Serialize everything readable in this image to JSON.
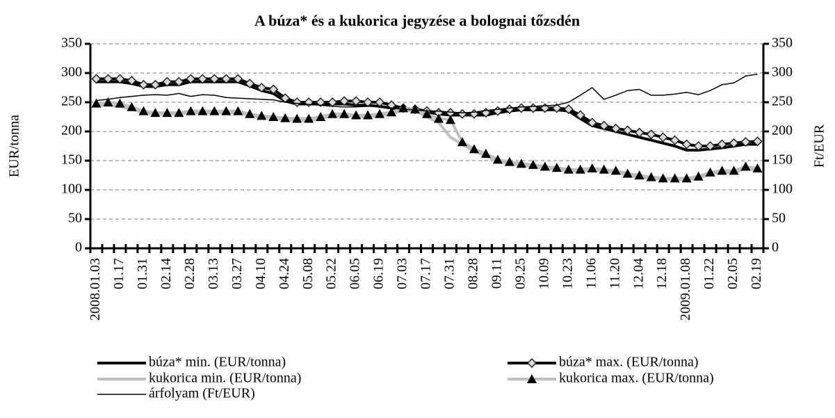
{
  "chart_data": {
    "type": "line",
    "title": "A búza* és a kukorica jegyzése a bolognai tőzsdén",
    "y_label": "EUR/tonna",
    "y2_label": "Ft/EUR",
    "categories": [
      "2008.01.03",
      null,
      "01.17",
      null,
      "01.31",
      null,
      "02.14",
      null,
      "02.28",
      null,
      "03.13",
      null,
      "03.27",
      null,
      "04.10",
      null,
      "04.24",
      null,
      "05.08",
      null,
      "05.22",
      null,
      "06.05",
      null,
      "06.19",
      null,
      "07.03",
      null,
      "07.17",
      null,
      "07.31",
      null,
      "08.28",
      null,
      "09.11",
      null,
      "09.25",
      null,
      "10.09",
      null,
      "10.23",
      null,
      "11.06",
      null,
      "11.20",
      null,
      "12.04",
      null,
      "12.18",
      null,
      "2009.01.08",
      null,
      "01.22",
      null,
      "02.05",
      null,
      "02.19"
    ],
    "ylim": [
      0,
      350
    ],
    "yticks": [
      0,
      50,
      100,
      150,
      200,
      250,
      300,
      350
    ],
    "y2lim": [
      0,
      350
    ],
    "y2ticks": [
      0,
      50,
      100,
      150,
      200,
      250,
      300,
      350
    ],
    "grid": true,
    "series": [
      {
        "name": "búza* min. (EUR/tonna)",
        "color": "#000000",
        "values": [
          285,
          285,
          285,
          282,
          277,
          277,
          280,
          280,
          285,
          285,
          285,
          285,
          285,
          278,
          270,
          265,
          252,
          247,
          247,
          247,
          247,
          247,
          245,
          245,
          243,
          240,
          237,
          235,
          233,
          230,
          228,
          228,
          228,
          228,
          232,
          235,
          237,
          237,
          237,
          237,
          235,
          222,
          210,
          205,
          200,
          195,
          190,
          185,
          180,
          175,
          168,
          168,
          170,
          172,
          175,
          178,
          178
        ]
      },
      {
        "name": "búza* max. (EUR/tonna)",
        "color": "#000000",
        "marker": "diamond",
        "values": [
          290,
          290,
          290,
          287,
          280,
          280,
          285,
          285,
          290,
          290,
          290,
          290,
          290,
          282,
          275,
          272,
          257,
          250,
          250,
          250,
          250,
          252,
          252,
          250,
          250,
          245,
          240,
          238,
          235,
          232,
          232,
          230,
          230,
          232,
          235,
          238,
          240,
          240,
          240,
          240,
          238,
          228,
          215,
          210,
          205,
          202,
          198,
          195,
          190,
          185,
          178,
          175,
          175,
          178,
          180,
          182,
          183
        ]
      },
      {
        "name": "kukorica min. (EUR/tonna)",
        "color": "#bfbfbf",
        "values": [
          245,
          245,
          243,
          238,
          232,
          230,
          230,
          230,
          232,
          232,
          232,
          232,
          232,
          227,
          224,
          222,
          220,
          219,
          219,
          222,
          227,
          227,
          225,
          225,
          227,
          230,
          237,
          235,
          225,
          215,
          190,
          178,
          166,
          158,
          148,
          145,
          142,
          140,
          137,
          135,
          132,
          132,
          134,
          132,
          130,
          125,
          122,
          120,
          118,
          118,
          118,
          120,
          127,
          130,
          130,
          136,
          134
        ]
      },
      {
        "name": "kukorica max. (EUR/tonna)",
        "color": "#bfbfbf",
        "marker": "triangle",
        "values": [
          248,
          250,
          248,
          242,
          235,
          232,
          232,
          232,
          235,
          235,
          235,
          235,
          235,
          230,
          227,
          225,
          223,
          222,
          222,
          225,
          230,
          230,
          228,
          228,
          230,
          233,
          240,
          238,
          230,
          222,
          220,
          182,
          170,
          162,
          152,
          148,
          145,
          143,
          140,
          138,
          135,
          135,
          137,
          135,
          133,
          128,
          125,
          122,
          120,
          120,
          120,
          123,
          130,
          133,
          133,
          140,
          137
        ]
      },
      {
        "name": "árfolyam (Ft/EUR)",
        "color": "#000000",
        "axis": "y2",
        "values": [
          253,
          255,
          258,
          260,
          262,
          263,
          262,
          265,
          260,
          263,
          262,
          258,
          257,
          256,
          255,
          254,
          250,
          248,
          246,
          245,
          243,
          242,
          242,
          243,
          243,
          240,
          238,
          237,
          235,
          235,
          233,
          232,
          233,
          236,
          238,
          240,
          242,
          243,
          244,
          245,
          250,
          262,
          275,
          255,
          262,
          270,
          272,
          262,
          262,
          264,
          267,
          263,
          270,
          280,
          283,
          295,
          298
        ]
      }
    ]
  }
}
